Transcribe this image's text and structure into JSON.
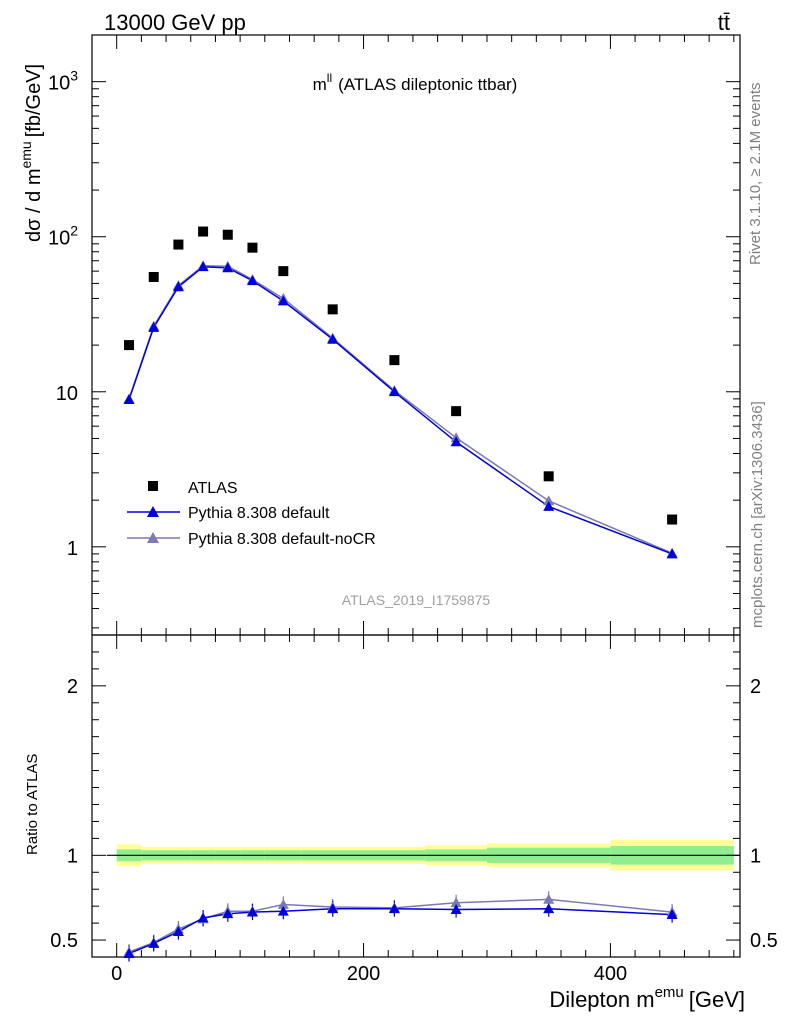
{
  "header": {
    "left": "13000 GeV pp",
    "right": "tt̄"
  },
  "side_labels": {
    "rivet": "Rivet 3.1.10, ≥ 2.1M events",
    "mcplots": "mcplots.cern.ch [arXiv:1306.3436]"
  },
  "chart_data": [
    {
      "type": "scatter",
      "panel": "main",
      "title_main": "m",
      "title_sup": "ll",
      "title_rest": "(ATLAS dileptonic ttbar)",
      "watermark": "ATLAS_2019_I1759875",
      "ylabel_pre": "dσ / d m",
      "ylabel_sup": "emu",
      "ylabel_post": "[fb/GeV]",
      "yscale": "log",
      "ylim": [
        0.27,
        2000
      ],
      "xlim": [
        -20,
        505
      ],
      "y_tick_labels": [
        {
          "value": 1,
          "label": "1"
        },
        {
          "value": 10,
          "label": "10"
        },
        {
          "value": 100,
          "label": "10",
          "sup": "2"
        },
        {
          "value": 1000,
          "label": "10",
          "sup": "3"
        }
      ],
      "legend_position": "lower-left",
      "x": [
        10,
        30,
        50,
        70,
        90,
        110,
        135,
        175,
        225,
        275,
        350,
        450
      ],
      "x_bin_edges": [
        0,
        20,
        40,
        60,
        80,
        100,
        120,
        150,
        200,
        250,
        300,
        400,
        500
      ],
      "series": [
        {
          "name": "ATLAS",
          "color": "#000000",
          "marker": "square",
          "values": [
            20,
            55,
            89,
            108,
            103,
            85,
            60,
            34,
            16,
            7.5,
            2.85,
            1.5
          ]
        },
        {
          "name": "Pythia 8.308 default",
          "color": "#0000dd",
          "marker": "triangle",
          "values": [
            8.9,
            26,
            47.5,
            64,
            63,
            52,
            38.5,
            21.8,
            10,
            4.75,
            1.82,
            0.9
          ]
        },
        {
          "name": "Pythia 8.308 default-noCR",
          "color": "#7a7ab8",
          "marker": "triangle",
          "values": [
            9.0,
            26.5,
            48.5,
            65,
            64.5,
            53,
            40,
            22.2,
            10.2,
            5.05,
            1.98,
            0.91
          ]
        }
      ]
    },
    {
      "type": "scatter",
      "panel": "ratio",
      "ylabel": "Ratio to ATLAS",
      "xlabel_pre": "Dilepton m",
      "xlabel_sup": "emu",
      "xlabel_post": "[GeV]",
      "xlim": [
        -20,
        505
      ],
      "ylim": [
        0.4,
        2.3
      ],
      "x_ticks": [
        0,
        200,
        400
      ],
      "x_tick_labels": [
        "0",
        "200",
        "400"
      ],
      "y_tick_labels": [
        {
          "value": 0.5,
          "label": "0.5"
        },
        {
          "value": 1,
          "label": "1"
        },
        {
          "value": 2,
          "label": "2"
        }
      ],
      "x": [
        10,
        30,
        50,
        70,
        90,
        110,
        135,
        175,
        225,
        275,
        350,
        450
      ],
      "x_bin_edges": [
        0,
        20,
        40,
        60,
        80,
        100,
        120,
        150,
        200,
        250,
        300,
        400,
        500
      ],
      "band_inner_halfwidth": [
        0.035,
        0.03,
        0.03,
        0.03,
        0.03,
        0.03,
        0.03,
        0.03,
        0.03,
        0.035,
        0.045,
        0.055
      ],
      "band_outer_halfwidth": [
        0.065,
        0.05,
        0.05,
        0.05,
        0.05,
        0.05,
        0.05,
        0.05,
        0.05,
        0.06,
        0.07,
        0.09
      ],
      "band_inner_color": "#90ee90",
      "band_outer_color": "#ffff99",
      "series": [
        {
          "name": "Pythia 8.308 default",
          "color": "#0000dd",
          "marker": "triangle",
          "values": [
            0.42,
            0.48,
            0.55,
            0.63,
            0.655,
            0.665,
            0.67,
            0.685,
            0.685,
            0.68,
            0.685,
            0.65
          ]
        },
        {
          "name": "Pythia 8.308 default-noCR",
          "color": "#7a7ab8",
          "marker": "triangle",
          "values": [
            0.43,
            0.485,
            0.565,
            0.625,
            0.67,
            0.67,
            0.71,
            0.695,
            0.69,
            0.72,
            0.74,
            0.665
          ]
        }
      ]
    }
  ]
}
